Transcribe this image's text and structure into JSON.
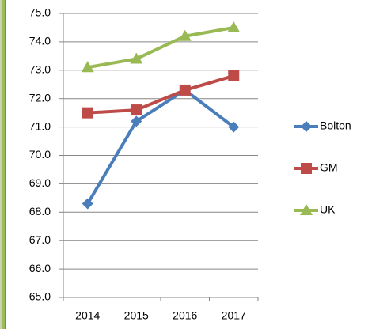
{
  "chart_data": {
    "type": "line",
    "categories": [
      "2014",
      "2015",
      "2016",
      "2017"
    ],
    "series": [
      {
        "name": "Bolton",
        "color": "#4a7ebb",
        "marker": "diamond",
        "values": [
          68.3,
          71.2,
          72.3,
          71.0
        ]
      },
      {
        "name": "GM",
        "color": "#be4b48",
        "marker": "square",
        "values": [
          71.5,
          71.6,
          72.3,
          72.8
        ]
      },
      {
        "name": "UK",
        "color": "#98b954",
        "marker": "triangle",
        "values": [
          73.1,
          73.4,
          74.2,
          74.5
        ]
      }
    ],
    "ylim": [
      65,
      75
    ],
    "yticks": [
      {
        "value": 65,
        "label": "65.0"
      },
      {
        "value": 66,
        "label": "66.0"
      },
      {
        "value": 67,
        "label": "67.0"
      },
      {
        "value": 68,
        "label": "68.0"
      },
      {
        "value": 69,
        "label": "69.0"
      },
      {
        "value": 70,
        "label": "70.0"
      },
      {
        "value": 71,
        "label": "71.0"
      },
      {
        "value": 72,
        "label": "72.0"
      },
      {
        "value": 73,
        "label": "73.0"
      },
      {
        "value": 74,
        "label": "74.0"
      },
      {
        "value": 75,
        "label": "75.0"
      }
    ],
    "grid": true,
    "legend": "right"
  }
}
